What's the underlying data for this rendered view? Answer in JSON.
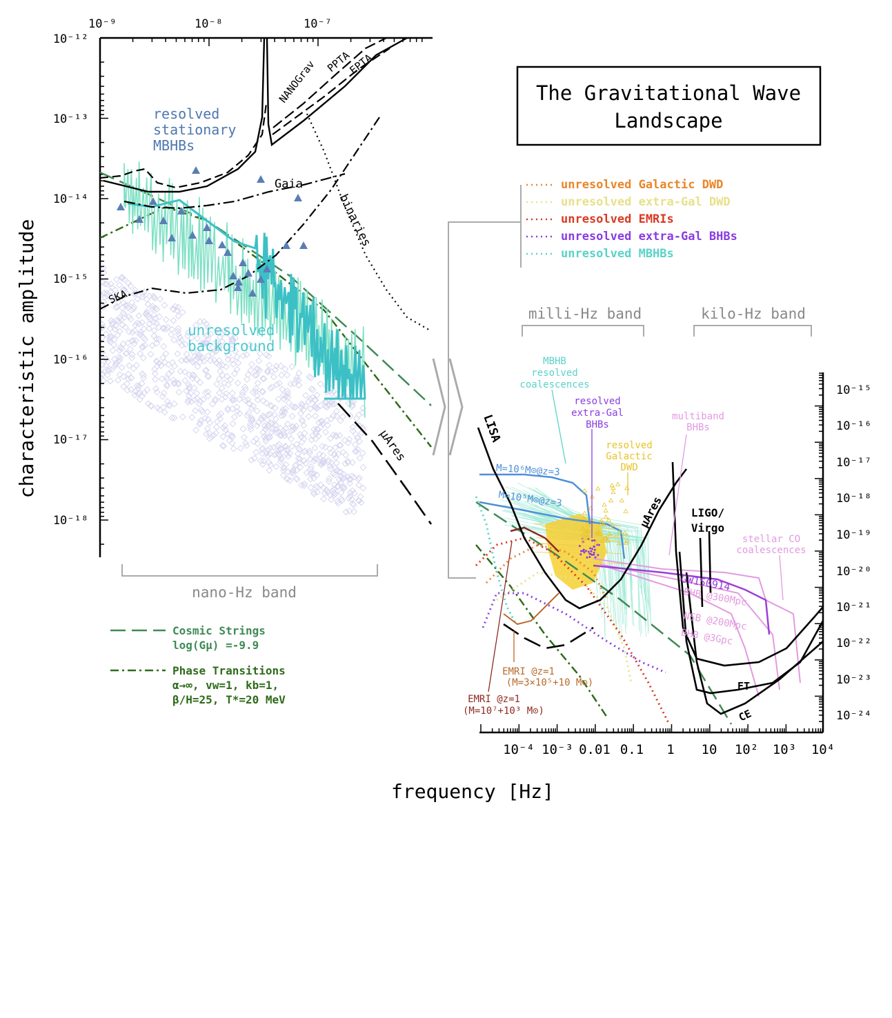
{
  "title_box": {
    "line1": "The Gravitational Wave",
    "line2": "Landscape"
  },
  "axes": {
    "xlabel": "frequency [Hz]",
    "ylabel": "characteristic amplitude"
  },
  "band_labels": {
    "nano": "nano-Hz band",
    "milli": "milli-Hz band",
    "kilo": "kilo-Hz band"
  },
  "legend_unresolved": [
    {
      "label": "unresolved Galactic DWD",
      "color": "#e8862a"
    },
    {
      "label": "unresolved extra-Gal DWD",
      "color": "#e8e08a"
    },
    {
      "label": "unresolved EMRIs",
      "color": "#d93a22"
    },
    {
      "label": "unresolved extra-Gal BHBs",
      "color": "#8a3de0"
    },
    {
      "label": "unresolved MBHBs",
      "color": "#5ad2c8"
    }
  ],
  "legend_lower_left": {
    "cs_line1": "Cosmic Strings",
    "cs_line2": "log(Gμ) =-9.9",
    "pt_line1": "Phase Transitions",
    "pt_line2": "α→∞, vw=1, kb=1,",
    "pt_line3": "β/H=25, T*=20 MeV"
  },
  "nano_labels": {
    "resolved1": "resolved",
    "resolved2": "stationary",
    "resolved3": "MBHBs",
    "unres1": "unresolved",
    "unres2": "background",
    "nanograv": "NANOGrav",
    "ppta": "PPTA",
    "epta": "EPTA",
    "gaia": "Gaia",
    "ska": "SKA",
    "binaries": "binaries",
    "muares": "μAres"
  },
  "milli_labels": {
    "lisa": "LISA",
    "mbhb1": "MBHB",
    "mbhb2": "resolved",
    "mbhb3": "coalescences",
    "rxg1": "resolved",
    "rxg2": "extra-Gal",
    "rxg3": "BHBs",
    "rgal1": "resolved",
    "rgal2": "Galactic",
    "rgal3": "DWD",
    "multi1": "multiband",
    "multi2": "BHBs",
    "m1e6": "M=10⁶M⊙@z=3",
    "m1e5": "M=10⁵M⊙@z=3",
    "muares": "μAres",
    "ligo1": "LIGO/",
    "ligo2": "Virgo",
    "stellar1": "stellar CO",
    "stellar2": "coalescences",
    "gw150914": "GW150914",
    "bhb300": "BHB @300Mpc",
    "nsb200": "NSB @200Mpc",
    "bhb3g": "BHB @3Gpc",
    "et": "ET",
    "ce": "CE",
    "emri1a": "EMRI @z=1",
    "emri1b": "(M=3×10⁵+10 M⊙)",
    "emri2a": "EMRI @z=1",
    "emri2b": "(M=10⁷+10³ M⊙)"
  },
  "nano_axes": {
    "xticks": [
      "10⁻⁹",
      "10⁻⁸",
      "10⁻⁷"
    ],
    "yticks": [
      "10⁻¹²",
      "10⁻¹³",
      "10⁻¹⁴",
      "10⁻¹⁵",
      "10⁻¹⁶",
      "10⁻¹⁷",
      "10⁻¹⁸"
    ]
  },
  "milli_axes": {
    "xticks": [
      "10⁻⁴",
      "10⁻³",
      "0.01",
      "0.1",
      "1",
      "10",
      "10²",
      "10³",
      "10⁴"
    ],
    "yticks": [
      "10⁻¹⁵",
      "10⁻¹⁶",
      "10⁻¹⁷",
      "10⁻¹⁸",
      "10⁻¹⁹",
      "10⁻²⁰",
      "10⁻²¹",
      "10⁻²²",
      "10⁻²³",
      "10⁻²⁴"
    ]
  },
  "chart_data": [
    {
      "type": "line",
      "panel": "nano-Hz band",
      "xlabel": "frequency [Hz]",
      "ylabel": "characteristic amplitude",
      "xscale": "log",
      "yscale": "log",
      "xlim": [
        1e-09,
        5e-07
      ],
      "ylim": [
        3e-19,
        1e-12
      ],
      "series": [
        {
          "name": "NANOGrav",
          "x": [
            1.5e-08,
            2.3e-08,
            3e-08,
            5e-08,
            1e-07,
            2e-07
          ],
          "y": [
            5e-14,
            9e-14,
            8e-14,
            2e-13,
            5e-13,
            1e-12
          ]
        },
        {
          "name": "PPTA",
          "x": [
            3.2e-08,
            5e-08,
            1e-07,
            2e-07
          ],
          "y": [
            9e-14,
            1.5e-13,
            3.5e-13,
            9e-13
          ]
        },
        {
          "name": "EPTA",
          "x": [
            3.2e-08,
            5e-08,
            1e-07,
            2e-07,
            3e-07
          ],
          "y": [
            5e-14,
            8e-14,
            2e-13,
            5e-13,
            1e-12
          ]
        },
        {
          "name": "Gaia",
          "x": [
            2e-09,
            5e-09,
            1e-08,
            3e-08,
            6e-08,
            1.5e-07
          ],
          "y": [
            1e-14,
            8e-15,
            9e-15,
            1.2e-14,
            1.6e-14,
            2e-14
          ]
        },
        {
          "name": "SKA",
          "x": [
            1e-09,
            3e-09,
            1e-08,
            3e-08,
            6e-08,
            1e-07,
            2e-07
          ],
          "y": [
            4.5e-16,
            8e-16,
            7e-16,
            9e-16,
            2.5e-15,
            6e-15,
            2e-14
          ]
        },
        {
          "name": "binaries",
          "x": [
            8e-08,
            1.5e-07,
            3e-07,
            5e-07
          ],
          "y": [
            1e-13,
            1e-14,
            5e-16,
            2e-16
          ]
        },
        {
          "name": "μAres",
          "x": [
            2e-07,
            3e-07,
            5e-07
          ],
          "y": [
            4e-17,
            8e-18,
            1.2e-18
          ]
        }
      ]
    },
    {
      "type": "line",
      "panel": "milli-Hz and kilo-Hz band",
      "xlabel": "frequency [Hz]",
      "xscale": "log",
      "yscale": "log",
      "xlim": [
        5e-06,
        10000.0
      ],
      "ylim": [
        3e-25,
        3e-15
      ],
      "series": [
        {
          "name": "LISA",
          "x": [
            1e-05,
            0.0001,
            0.001,
            0.004,
            0.01,
            0.1,
            1
          ],
          "y": [
            1e-16,
            1e-18,
            1e-20,
            8e-21,
            2e-20,
            2e-19,
            1e-17
          ]
        },
        {
          "name": "μAres",
          "x": [
            1e-05,
            0.0001,
            0.001,
            0.01,
            0.1,
            1
          ],
          "y": [
            1e-20,
            1e-21,
            2e-22,
            1e-22,
            1e-21,
            1e-19
          ]
        },
        {
          "name": "LIGO/Virgo",
          "x": [
            10,
            30,
            100,
            300,
            1000,
            3000,
            5000
          ],
          "y": [
            1e-19,
            1e-21,
            1e-22,
            1e-22,
            8e-23,
            5e-22,
            1e-21
          ]
        },
        {
          "name": "ET",
          "x": [
            5,
            10,
            30,
            100,
            1000,
            5000
          ],
          "y": [
            1e-20,
            1e-22,
            4e-24,
            3e-24,
            5e-24,
            2e-22
          ]
        },
        {
          "name": "CE",
          "x": [
            8,
            15,
            30,
            100,
            1000,
            5000
          ],
          "y": [
            1e-20,
            1e-23,
            1e-24,
            8e-25,
            1e-24,
            1e-22
          ]
        }
      ]
    }
  ]
}
